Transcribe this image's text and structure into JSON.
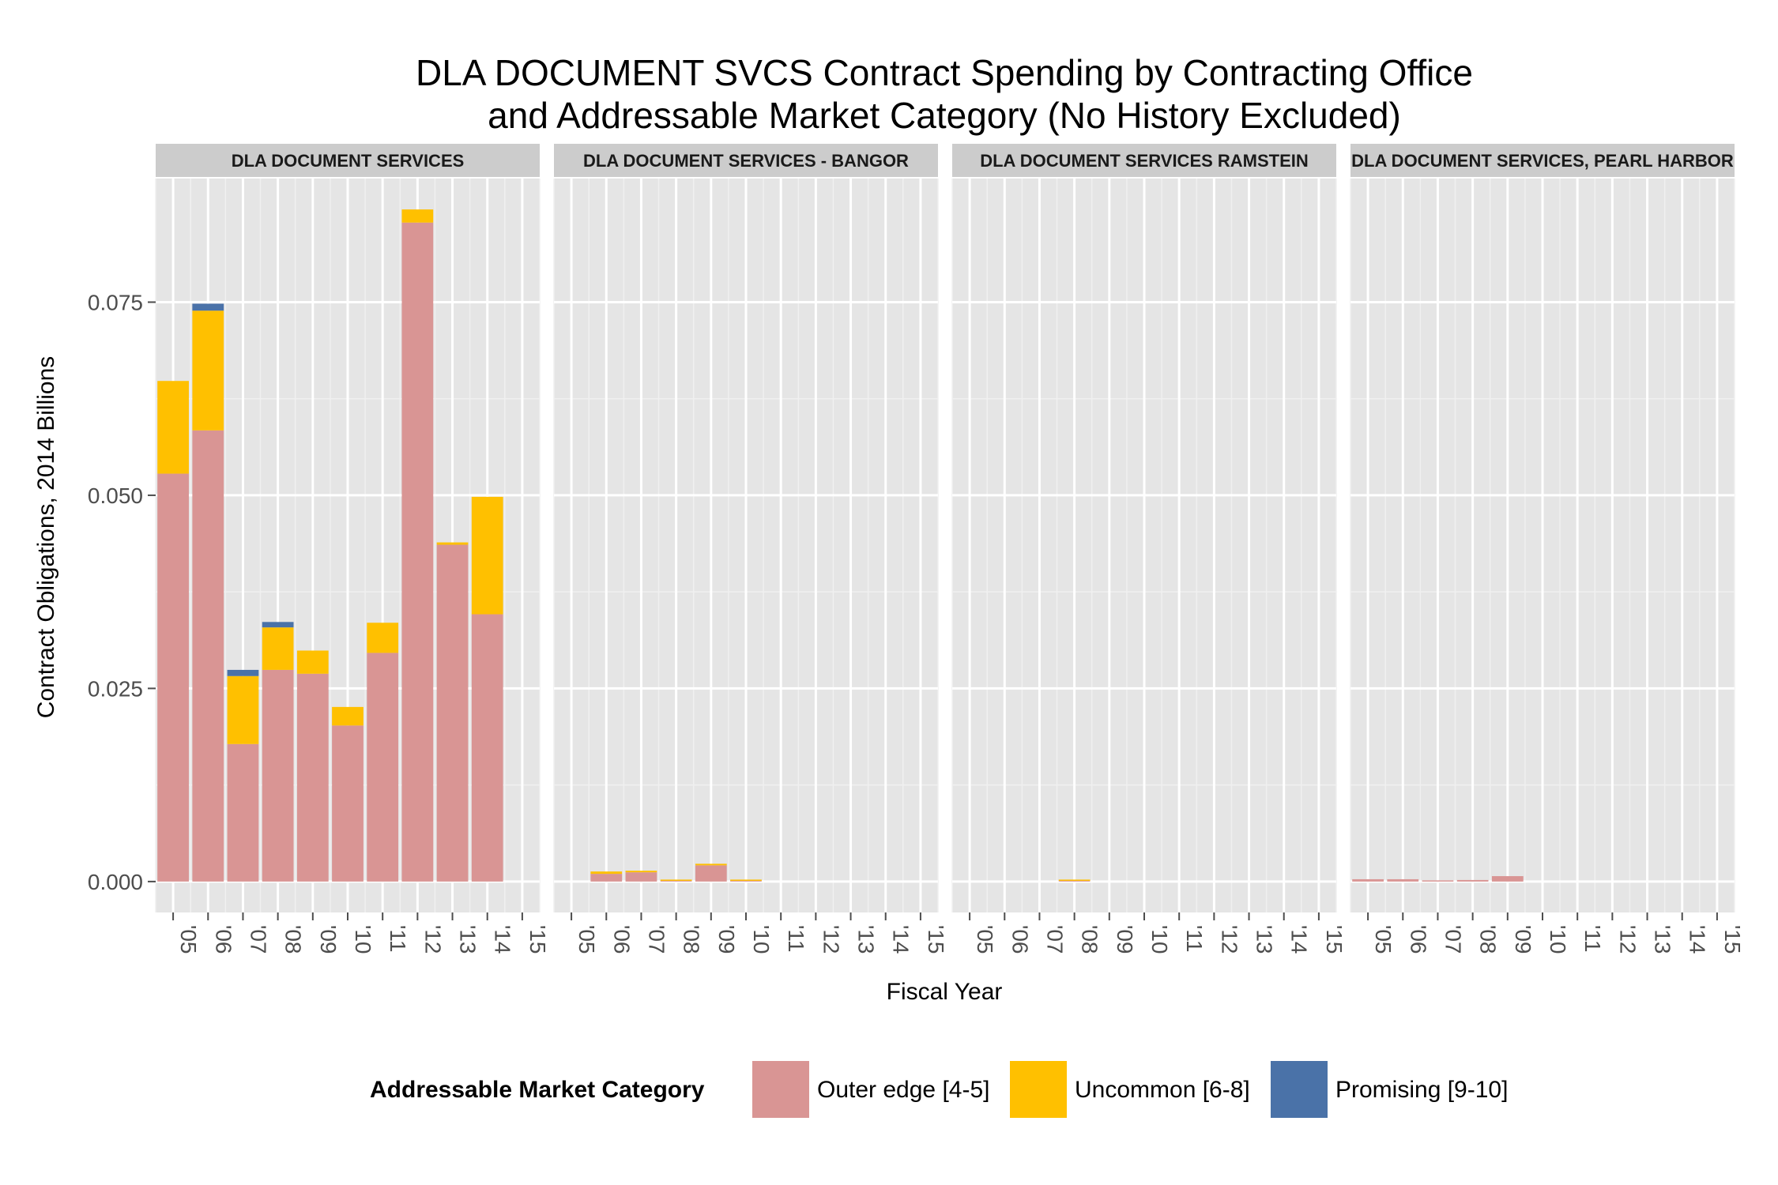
{
  "chart_data": {
    "type": "bar",
    "stacked": true,
    "title_lines": [
      "DLA DOCUMENT SVCS Contract Spending by Contracting Office",
      "and Addressable Market Category (No History Excluded)"
    ],
    "xlabel": "Fiscal Year",
    "ylabel": "Contract Obligations, 2014 Billions",
    "categories": [
      "'05",
      "'06",
      "'07",
      "'08",
      "'09",
      "'10",
      "'11",
      "'12",
      "'13",
      "'14",
      "'15"
    ],
    "ylim": [
      -0.004,
      0.091
    ],
    "yticks": [
      0.0,
      0.025,
      0.05,
      0.075
    ],
    "ytick_labels": [
      "0.000",
      "0.025",
      "0.050",
      "0.075"
    ],
    "grid": true,
    "legend": {
      "title": "Addressable Market Category",
      "position": "bottom",
      "entries": [
        "Outer edge [4-5]",
        "Uncommon [6-8]",
        "Promising [9-10]"
      ]
    },
    "colors": {
      "Outer edge [4-5]": "#d99594",
      "Uncommon [6-8]": "#ffc000",
      "Promising [9-10]": "#4a72a8",
      "panel_bg": "#e5e5e5",
      "strip_bg": "#cccccc",
      "grid_major": "#ffffff",
      "grid_minor": "#f0f0f0"
    },
    "facets": [
      {
        "name": "DLA DOCUMENT SERVICES",
        "series": [
          {
            "name": "Outer edge [4-5]",
            "values": [
              0.0528,
              0.0584,
              0.0178,
              0.0274,
              0.0269,
              0.0202,
              0.0296,
              0.0853,
              0.0436,
              0.0346,
              null
            ]
          },
          {
            "name": "Uncommon [6-8]",
            "values": [
              0.012,
              0.0155,
              0.0088,
              0.0055,
              0.003,
              0.0024,
              0.0039,
              0.0017,
              0.0003,
              0.0152,
              null
            ]
          },
          {
            "name": "Promising [9-10]",
            "values": [
              0.0,
              0.0009,
              0.0008,
              0.0007,
              0.0,
              0.0,
              0.0,
              0.0,
              0.0,
              0.0,
              null
            ]
          }
        ]
      },
      {
        "name": "DLA DOCUMENT SERVICES - BANGOR",
        "series": [
          {
            "name": "Outer edge [4-5]",
            "values": [
              null,
              0.001,
              0.0012,
              0.0001,
              0.0021,
              0.0001,
              null,
              null,
              null,
              null,
              null
            ]
          },
          {
            "name": "Uncommon [6-8]",
            "values": [
              null,
              0.0003,
              0.0002,
              0.0001,
              0.0002,
              0.0001,
              null,
              null,
              null,
              null,
              null
            ]
          },
          {
            "name": "Promising [9-10]",
            "values": [
              null,
              0.0,
              0.0,
              0.0,
              0.0,
              0.0,
              null,
              null,
              null,
              null,
              null
            ]
          }
        ]
      },
      {
        "name": "DLA DOCUMENT SERVICES RAMSTEIN",
        "series": [
          {
            "name": "Outer edge [4-5]",
            "values": [
              null,
              null,
              null,
              0.0001,
              null,
              null,
              null,
              null,
              null,
              null,
              null
            ]
          },
          {
            "name": "Uncommon [6-8]",
            "values": [
              null,
              null,
              null,
              0.0001,
              null,
              null,
              null,
              null,
              null,
              null,
              null
            ]
          },
          {
            "name": "Promising [9-10]",
            "values": [
              null,
              null,
              null,
              0.0,
              null,
              null,
              null,
              null,
              null,
              null,
              null
            ]
          }
        ]
      },
      {
        "name": "DLA DOCUMENT SERVICES, PEARL HARBOR",
        "series": [
          {
            "name": "Outer edge [4-5]",
            "values": [
              0.0003,
              0.0003,
              0.0001,
              0.0002,
              0.0007,
              null,
              null,
              null,
              null,
              null,
              null
            ]
          },
          {
            "name": "Uncommon [6-8]",
            "values": [
              0.0,
              0.0,
              0.0,
              0.0,
              0.0,
              null,
              null,
              null,
              null,
              null,
              null
            ]
          },
          {
            "name": "Promising [9-10]",
            "values": [
              0.0,
              0.0,
              0.0,
              0.0,
              0.0,
              null,
              null,
              null,
              null,
              null,
              null
            ]
          }
        ]
      }
    ]
  }
}
